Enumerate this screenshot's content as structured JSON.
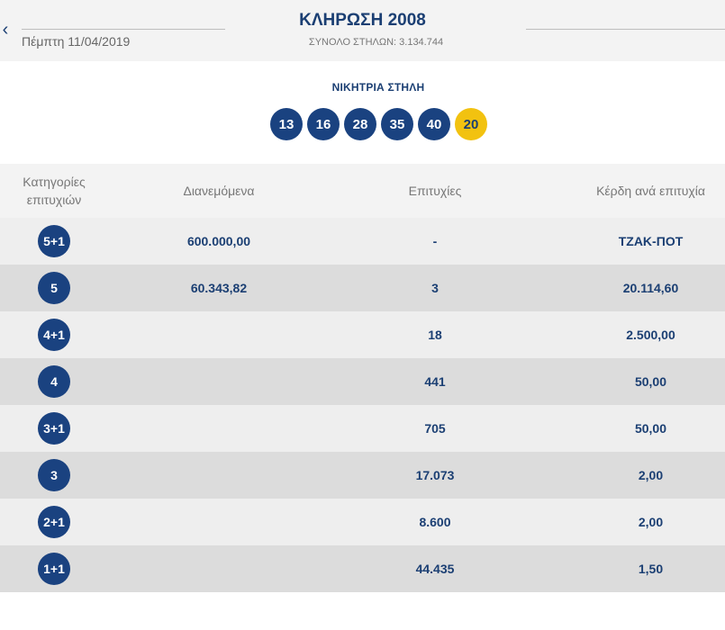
{
  "header": {
    "back_icon": "chevron-left-icon",
    "title": "ΚΛΗΡΩΣΗ 2008",
    "date": "Πέμπτη 11/04/2019",
    "columns_total": "ΣΥΝΟΛΟ ΣΤΗΛΩΝ: 3.134.744"
  },
  "winning": {
    "label": "ΝΙΚΗΤΡΙΑ ΣΤΗΛΗ",
    "numbers": [
      "13",
      "16",
      "28",
      "35",
      "40"
    ],
    "joker": "20",
    "colors": {
      "number": "#1a4280",
      "joker": "#f2c210"
    }
  },
  "table": {
    "headers": {
      "category": "Κατηγορίες επιτυχιών",
      "distributed": "Διανεμόμενα",
      "winners": "Επιτυχίες",
      "prize": "Κέρδη ανά επιτυχία"
    },
    "rows": [
      {
        "category": "5+1",
        "distributed": "600.000,00",
        "winners": "-",
        "prize": "ΤΖΑΚ-ΠΟΤ"
      },
      {
        "category": "5",
        "distributed": "60.343,82",
        "winners": "3",
        "prize": "20.114,60"
      },
      {
        "category": "4+1",
        "distributed": "",
        "winners": "18",
        "prize": "2.500,00"
      },
      {
        "category": "4",
        "distributed": "",
        "winners": "441",
        "prize": "50,00"
      },
      {
        "category": "3+1",
        "distributed": "",
        "winners": "705",
        "prize": "50,00"
      },
      {
        "category": "3",
        "distributed": "",
        "winners": "17.073",
        "prize": "2,00"
      },
      {
        "category": "2+1",
        "distributed": "",
        "winners": "8.600",
        "prize": "2,00"
      },
      {
        "category": "1+1",
        "distributed": "",
        "winners": "44.435",
        "prize": "1,50"
      }
    ]
  }
}
